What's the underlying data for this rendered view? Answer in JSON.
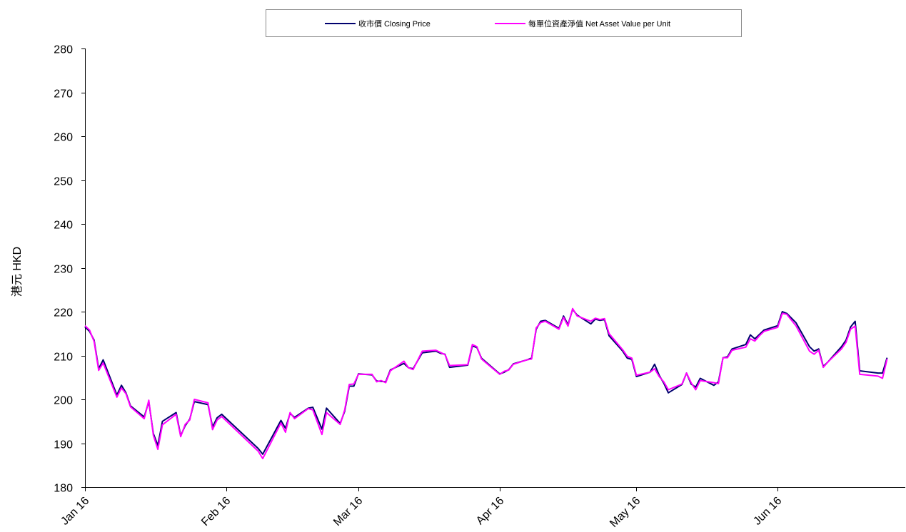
{
  "chart_data": {
    "type": "line",
    "title": "",
    "ylabel": "港元 HKD",
    "xlabel": "",
    "ylim": [
      180,
      280
    ],
    "yticks": [
      180,
      190,
      200,
      210,
      220,
      230,
      240,
      250,
      260,
      270,
      280
    ],
    "xtick_labels": [
      "Jan 16",
      "Feb 16",
      "Mar 16",
      "Apr 16",
      "May 16",
      "Jun 16"
    ],
    "xtick_days": [
      1,
      32,
      61,
      92,
      122,
      153
    ],
    "x_range_days": [
      1,
      181
    ],
    "grid": false,
    "legend_position": "top",
    "colors": {
      "closing": "#00006e",
      "nav": "#ff00ff"
    },
    "series": [
      {
        "name": "收市價 Closing Price",
        "points": [
          [
            1,
            216.5
          ],
          [
            2,
            215.5
          ],
          [
            3,
            213.5
          ],
          [
            4,
            207
          ],
          [
            5,
            209
          ],
          [
            8,
            201
          ],
          [
            9,
            203.2
          ],
          [
            10,
            201.5
          ],
          [
            11,
            198.5
          ],
          [
            14,
            196
          ],
          [
            15,
            199.5
          ],
          [
            16,
            192.2
          ],
          [
            17,
            189.5
          ],
          [
            18,
            195
          ],
          [
            21,
            197
          ],
          [
            22,
            191.7
          ],
          [
            23,
            194
          ],
          [
            24,
            195.5
          ],
          [
            25,
            199.5
          ],
          [
            28,
            198.8
          ],
          [
            29,
            193.7
          ],
          [
            30,
            195.8
          ],
          [
            31,
            196.6
          ],
          [
            39,
            188.8
          ],
          [
            40,
            187.5
          ],
          [
            44,
            195.2
          ],
          [
            45,
            193.4
          ],
          [
            46,
            196.8
          ],
          [
            47,
            195.9
          ],
          [
            50,
            198
          ],
          [
            51,
            198.2
          ],
          [
            53,
            193.2
          ],
          [
            54,
            198
          ],
          [
            57,
            194.5
          ],
          [
            58,
            197.3
          ],
          [
            59,
            203
          ],
          [
            60,
            203
          ],
          [
            61,
            205.8
          ],
          [
            64,
            205.6
          ],
          [
            65,
            204.2
          ],
          [
            66,
            204.1
          ],
          [
            67,
            204
          ],
          [
            68,
            206.7
          ],
          [
            71,
            208.2
          ],
          [
            72,
            207.2
          ],
          [
            73,
            207
          ],
          [
            75,
            210.6
          ],
          [
            78,
            211
          ],
          [
            79,
            210.5
          ],
          [
            80,
            210.3
          ],
          [
            81,
            207.3
          ],
          [
            85,
            207.8
          ],
          [
            86,
            212.2
          ],
          [
            87,
            211.8
          ],
          [
            88,
            209.4
          ],
          [
            92,
            205.8
          ],
          [
            93,
            206.2
          ],
          [
            94,
            206.8
          ],
          [
            95,
            208.1
          ],
          [
            98,
            209
          ],
          [
            99,
            209.4
          ],
          [
            100,
            216
          ],
          [
            101,
            217.8
          ],
          [
            102,
            218
          ],
          [
            105,
            216.2
          ],
          [
            106,
            219
          ],
          [
            107,
            217
          ],
          [
            108,
            220.5
          ],
          [
            109,
            219.2
          ],
          [
            112,
            217.2
          ],
          [
            113,
            218.3
          ],
          [
            114,
            218
          ],
          [
            115,
            218.2
          ],
          [
            116,
            214.5
          ],
          [
            119,
            211
          ],
          [
            120,
            209.4
          ],
          [
            121,
            209.1
          ],
          [
            122,
            205.2
          ],
          [
            125,
            206.2
          ],
          [
            126,
            208
          ],
          [
            127,
            205.5
          ],
          [
            128,
            203.7
          ],
          [
            129,
            201.5
          ],
          [
            132,
            203.4
          ],
          [
            133,
            206
          ],
          [
            134,
            203.5
          ],
          [
            135,
            202.8
          ],
          [
            136,
            204.8
          ],
          [
            139,
            203.2
          ],
          [
            140,
            204
          ],
          [
            141,
            209.5
          ],
          [
            142,
            209.7
          ],
          [
            143,
            211.5
          ],
          [
            146,
            212.5
          ],
          [
            147,
            214.7
          ],
          [
            148,
            213.8
          ],
          [
            149,
            214.8
          ],
          [
            150,
            215.8
          ],
          [
            153,
            216.8
          ],
          [
            154,
            220
          ],
          [
            155,
            219.6
          ],
          [
            157,
            217.5
          ],
          [
            160,
            212
          ],
          [
            161,
            211
          ],
          [
            162,
            211.5
          ],
          [
            163,
            207.5
          ],
          [
            164,
            208.5
          ],
          [
            167,
            212
          ],
          [
            168,
            213.5
          ],
          [
            169,
            216.5
          ],
          [
            170,
            217.8
          ],
          [
            171,
            206.5
          ],
          [
            175,
            206
          ],
          [
            176,
            206
          ],
          [
            177,
            209.5
          ]
        ]
      },
      {
        "name": "每單位資產淨值 Net Asset Value per Unit",
        "points": [
          [
            1,
            216.8
          ],
          [
            2,
            215.8
          ],
          [
            3,
            213.2
          ],
          [
            4,
            206.6
          ],
          [
            5,
            208.3
          ],
          [
            8,
            200.5
          ],
          [
            9,
            202.6
          ],
          [
            10,
            201.3
          ],
          [
            11,
            198.3
          ],
          [
            14,
            195.6
          ],
          [
            15,
            199.8
          ],
          [
            16,
            191.8
          ],
          [
            17,
            188.6
          ],
          [
            18,
            194.2
          ],
          [
            21,
            196.6
          ],
          [
            22,
            191.5
          ],
          [
            23,
            194.3
          ],
          [
            24,
            195.3
          ],
          [
            25,
            200
          ],
          [
            28,
            199.2
          ],
          [
            29,
            193.1
          ],
          [
            30,
            195.3
          ],
          [
            31,
            196.1
          ],
          [
            39,
            188.2
          ],
          [
            40,
            186.5
          ],
          [
            44,
            194.6
          ],
          [
            45,
            192.5
          ],
          [
            46,
            197
          ],
          [
            47,
            195.6
          ],
          [
            50,
            197.9
          ],
          [
            51,
            197.6
          ],
          [
            53,
            192
          ],
          [
            54,
            197
          ],
          [
            57,
            194.3
          ],
          [
            58,
            197.6
          ],
          [
            59,
            203.4
          ],
          [
            60,
            203.5
          ],
          [
            61,
            205.7
          ],
          [
            64,
            205.7
          ],
          [
            65,
            204
          ],
          [
            66,
            204.3
          ],
          [
            67,
            203.8
          ],
          [
            68,
            206.5
          ],
          [
            71,
            208.7
          ],
          [
            72,
            207.2
          ],
          [
            73,
            206.8
          ],
          [
            75,
            211
          ],
          [
            78,
            211.2
          ],
          [
            79,
            210.7
          ],
          [
            80,
            210.2
          ],
          [
            81,
            207.7
          ],
          [
            85,
            207.9
          ],
          [
            86,
            212.5
          ],
          [
            87,
            212
          ],
          [
            88,
            209.2
          ],
          [
            92,
            205.7
          ],
          [
            93,
            206.4
          ],
          [
            94,
            206.7
          ],
          [
            95,
            208
          ],
          [
            98,
            209
          ],
          [
            99,
            209.2
          ],
          [
            100,
            216.3
          ],
          [
            101,
            217.5
          ],
          [
            102,
            217.8
          ],
          [
            105,
            216
          ],
          [
            106,
            218.7
          ],
          [
            107,
            216.7
          ],
          [
            108,
            220.7
          ],
          [
            109,
            219
          ],
          [
            112,
            217.8
          ],
          [
            113,
            218.5
          ],
          [
            114,
            218.2
          ],
          [
            115,
            218.4
          ],
          [
            116,
            215
          ],
          [
            119,
            211.3
          ],
          [
            120,
            209.8
          ],
          [
            121,
            209.4
          ],
          [
            122,
            205.5
          ],
          [
            125,
            206.2
          ],
          [
            126,
            207
          ],
          [
            127,
            205.2
          ],
          [
            128,
            204
          ],
          [
            129,
            202.2
          ],
          [
            132,
            203.5
          ],
          [
            133,
            206
          ],
          [
            134,
            203.8
          ],
          [
            135,
            202.2
          ],
          [
            136,
            204.3
          ],
          [
            139,
            203.8
          ],
          [
            140,
            203.6
          ],
          [
            141,
            209.5
          ],
          [
            142,
            209.5
          ],
          [
            143,
            211.2
          ],
          [
            146,
            211.9
          ],
          [
            147,
            213.8
          ],
          [
            148,
            213.3
          ],
          [
            149,
            214.5
          ],
          [
            150,
            215.5
          ],
          [
            153,
            216.4
          ],
          [
            154,
            219.6
          ],
          [
            155,
            219.4
          ],
          [
            157,
            216.8
          ],
          [
            160,
            211
          ],
          [
            161,
            210.3
          ],
          [
            162,
            211.2
          ],
          [
            163,
            207.3
          ],
          [
            164,
            208.5
          ],
          [
            167,
            211.5
          ],
          [
            168,
            213
          ],
          [
            169,
            216
          ],
          [
            170,
            216.7
          ],
          [
            171,
            205.7
          ],
          [
            175,
            205.3
          ],
          [
            176,
            204.8
          ],
          [
            177,
            209.2
          ]
        ]
      }
    ]
  }
}
